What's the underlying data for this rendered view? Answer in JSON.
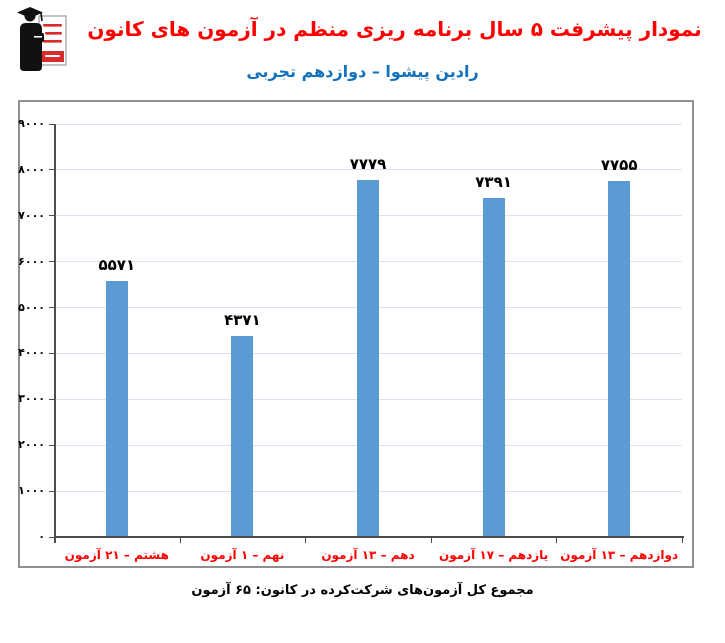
{
  "header": {
    "title": "نمودار پیشرفت ۵ سال برنامه ریزی منظم در آزمون های کانون",
    "subtitle": "رادین پیشوا – دوازدهم تجربی",
    "logo_name": "kanoon-ghalamchi-logo"
  },
  "footer": {
    "caption": "مجموع کل آزمون‌های شرکت‌کرده در کانون:  ۶۵ آزمون"
  },
  "colors": {
    "title": "#ff0000",
    "subtitle": "#1272be",
    "bar": "#5b9bd5",
    "gridline": "#d8e2f4",
    "axis": "#4d4d4d",
    "frame_border": "#8f8f8f",
    "x_label": "#ff0000",
    "value_label": "#000000",
    "logo_red": "#d92b2b",
    "logo_black": "#111111"
  },
  "chart_data": {
    "type": "bar",
    "title": "نمودار پیشرفت ۵ سال برنامه ریزی منظم در آزمون های کانون",
    "subtitle": "رادین پیشوا – دوازدهم تجربی",
    "direction": "rtl-labels",
    "categories": [
      "هشتم – ۲۱ آزمون",
      "نهم – ۱ آزمون",
      "دهم – ۱۳ آزمون",
      "یازدهم – ۱۷ آزمون",
      "دوازدهم – ۱۳ آزمون"
    ],
    "values": [
      5571,
      4371,
      7779,
      7391,
      7755
    ],
    "value_labels": [
      "۵۵۷۱",
      "۴۳۷۱",
      "۷۷۷۹",
      "۷۳۹۱",
      "۷۷۵۵"
    ],
    "xlabel": "",
    "ylabel": "",
    "ylim": [
      0,
      9000
    ],
    "y_step": 1000,
    "y_tick_labels": [
      "۰",
      "۱۰۰۰",
      "۲۰۰۰",
      "۳۰۰۰",
      "۴۰۰۰",
      "۵۰۰۰",
      "۶۰۰۰",
      "۷۰۰۰",
      "۸۰۰۰",
      "۹۰۰۰"
    ],
    "grid": true,
    "legend": "none",
    "bar_color": "#5b9bd5"
  }
}
